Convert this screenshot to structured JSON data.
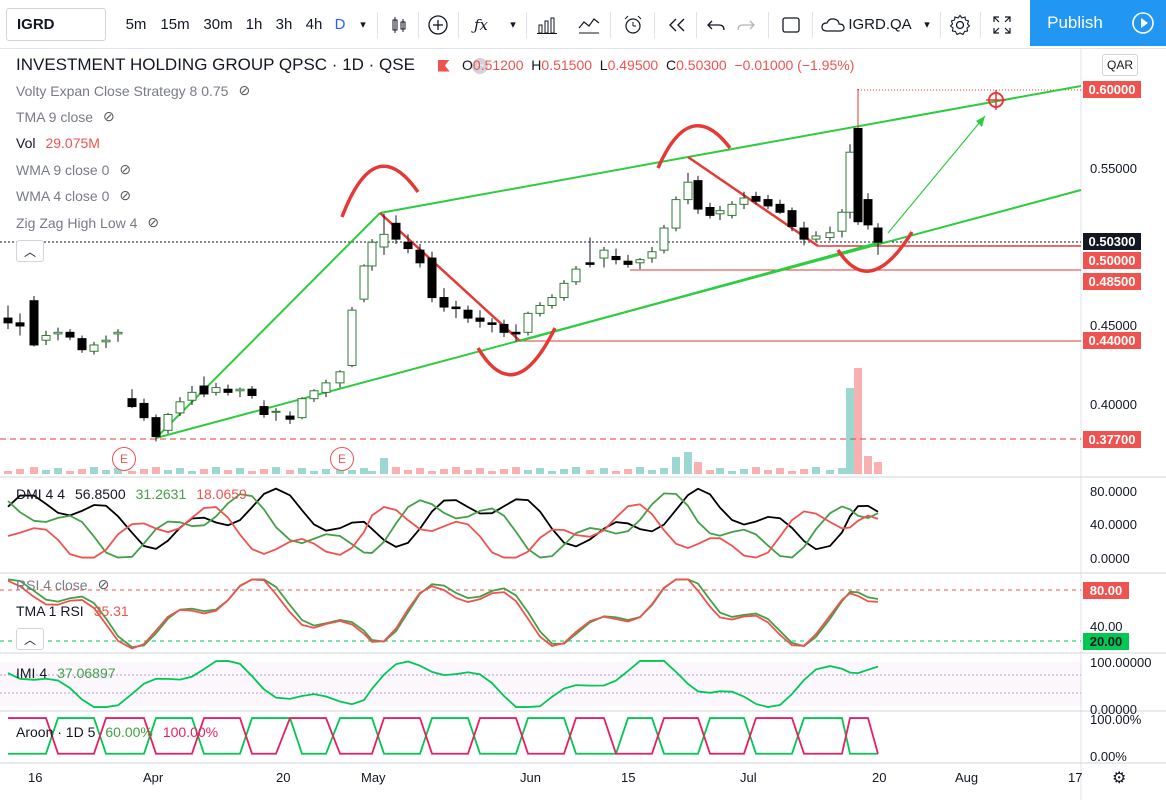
{
  "toolbar": {
    "symbol": "IGRD",
    "intervals": [
      "5m",
      "15m",
      "30m",
      "1h",
      "3h",
      "4h",
      "D"
    ],
    "active_interval": "D",
    "compare_symbol": "IGRD.QA",
    "publish_label": "Publish"
  },
  "header": {
    "title": "INVESTMENT HOLDING GROUP QPSC · 1D · QSE",
    "open_label": "O",
    "open": "0.51200",
    "high_label": "H",
    "high": "0.51500",
    "low_label": "L",
    "low": "0.49500",
    "close_label": "C",
    "close": "0.50300",
    "change": "−0.01000 (−1.95%)",
    "currency": "QAR"
  },
  "indicators": {
    "volty": "Volty Expan Close Strategy 8 0.75",
    "tma": "TMA 9 close",
    "vol_label": "Vol",
    "vol_value": "29.075M",
    "wma9": "WMA 9 close 0",
    "wma4": "WMA 4 close 0",
    "zigzag": "Zig Zag High Low 4"
  },
  "dmi": {
    "label": "DMI 4 4",
    "adx": "56.8500",
    "plus": "31.2631",
    "minus": "18.0659",
    "ticks": [
      "80.0000",
      "40.0000",
      "0.0000"
    ]
  },
  "rsi": {
    "label": "RSI 4 close",
    "tma_label": "TMA 1 RSI",
    "tma_value": "35.31",
    "ticks": [
      "80.00",
      "40.00",
      "20.00"
    ]
  },
  "imi": {
    "label": "IMI 4",
    "value": "37.06897",
    "ticks": [
      "100.00000",
      "0.00000"
    ]
  },
  "aroon": {
    "label": "Aroon · 1D 5",
    "up": "60.00%",
    "down": "100.00%",
    "ticks": [
      "100.00%",
      "0.00%"
    ]
  },
  "price_axis": {
    "ticks": [
      "0.55000",
      "0.50000",
      "0.45000",
      "0.40000"
    ],
    "tags": [
      {
        "text": "0.60000",
        "color": "#ef5350"
      },
      {
        "text": "0.50300",
        "color": "#131722"
      },
      {
        "text": "0.50000",
        "color": "#ef5350"
      },
      {
        "text": "0.48500",
        "color": "#ef5350"
      },
      {
        "text": "0.44000",
        "color": "#ef5350"
      },
      {
        "text": "0.37700",
        "color": "#ef5350"
      }
    ]
  },
  "time_axis": [
    "16",
    "Apr",
    "20",
    "May",
    "Jun",
    "15",
    "Jul",
    "20",
    "Aug",
    "17"
  ],
  "earnings_marker": "E",
  "colors": {
    "up": "#26a69a",
    "down": "#ef5350",
    "trend": "#2ecc40",
    "zigzag": "#e53935",
    "candle_up": "#ffffff",
    "candle_down": "#000000"
  }
}
